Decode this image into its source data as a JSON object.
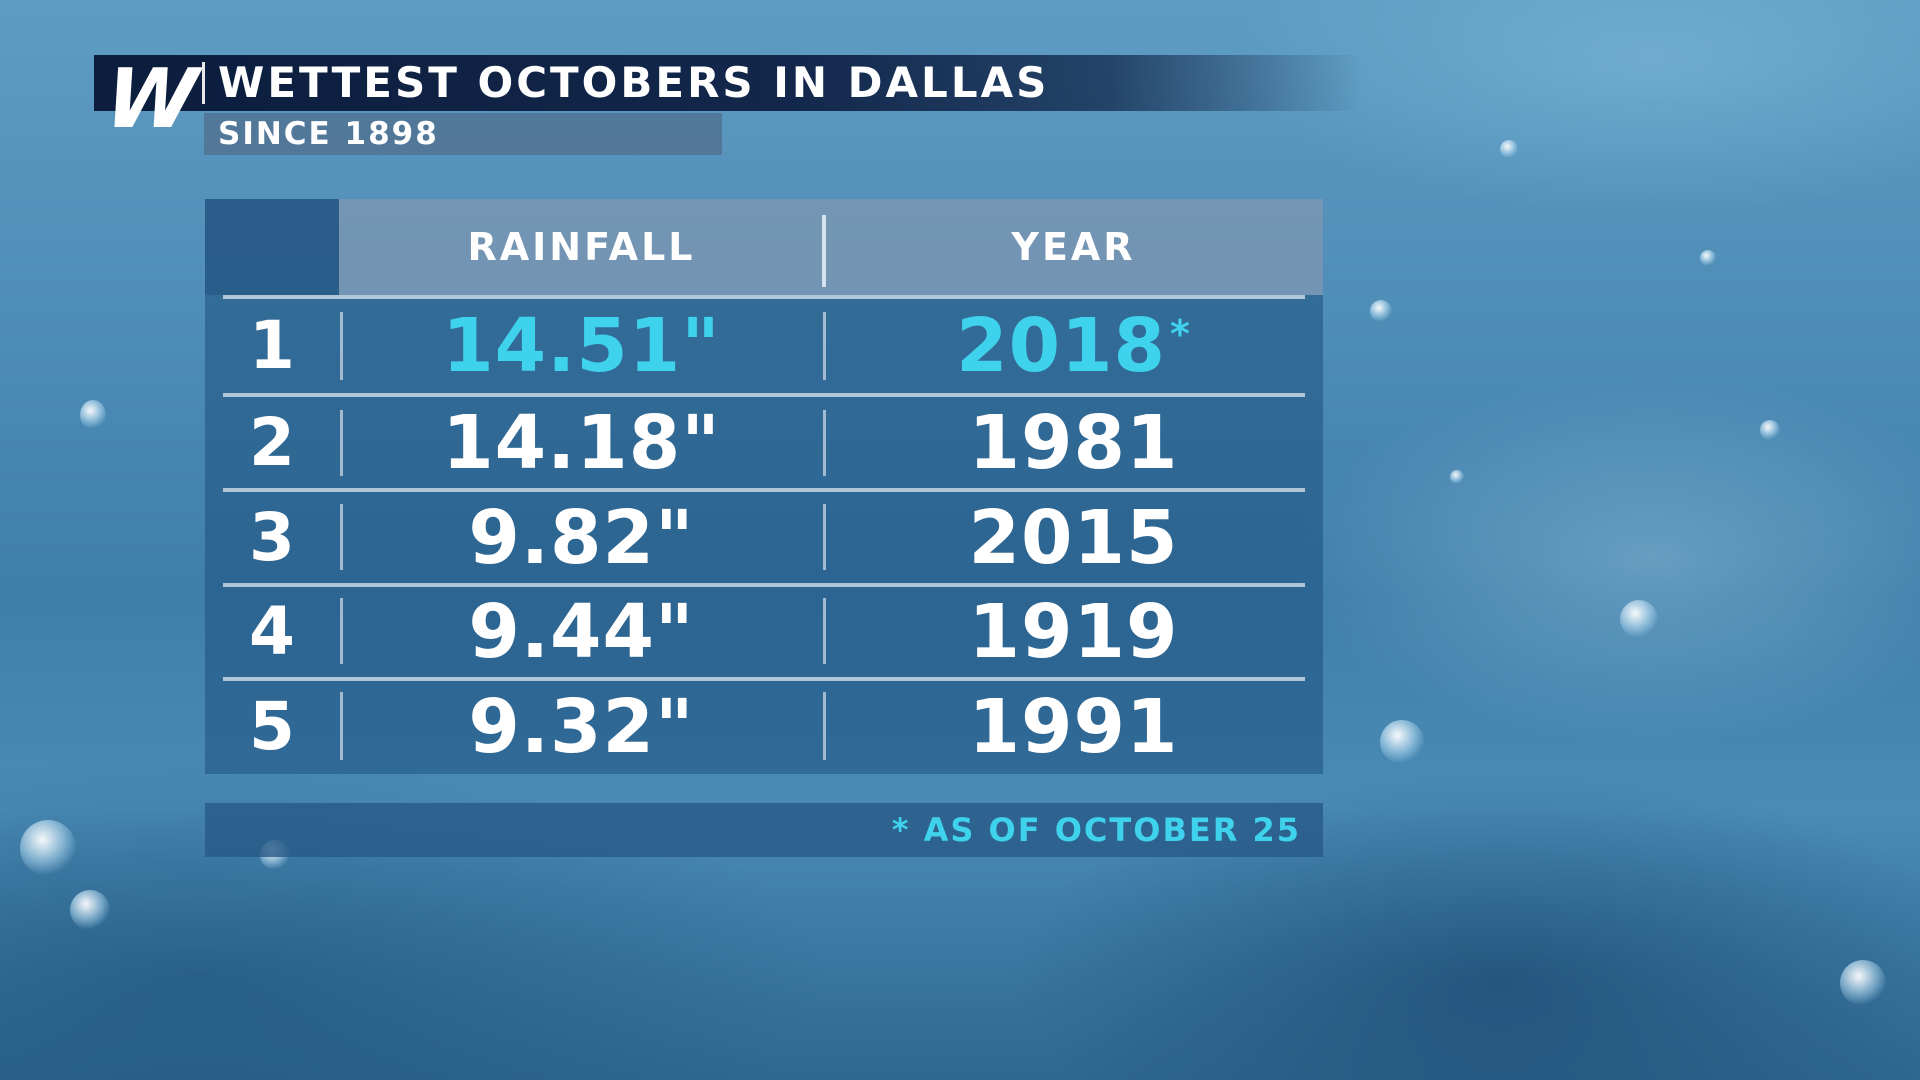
{
  "header": {
    "logo_letter": "W",
    "title": "WETTEST OCTOBERS IN DALLAS",
    "subtitle": "SINCE 1898"
  },
  "table": {
    "columns": {
      "rank": "",
      "rainfall": "RAINFALL",
      "year": "YEAR"
    },
    "rows": [
      {
        "rank": "1",
        "rainfall": "14.51\"",
        "year": "2018",
        "mark": "*"
      },
      {
        "rank": "2",
        "rainfall": "14.18\"",
        "year": "1981",
        "mark": ""
      },
      {
        "rank": "3",
        "rainfall": "9.82\"",
        "year": "2015",
        "mark": ""
      },
      {
        "rank": "4",
        "rainfall": "9.44\"",
        "year": "1919",
        "mark": ""
      },
      {
        "rank": "5",
        "rainfall": "9.32\"",
        "year": "1991",
        "mark": ""
      }
    ]
  },
  "footnote": "* AS OF OCTOBER 25",
  "colors": {
    "highlight": "#3fd2ec",
    "header_bar": "#0c1d3d"
  }
}
